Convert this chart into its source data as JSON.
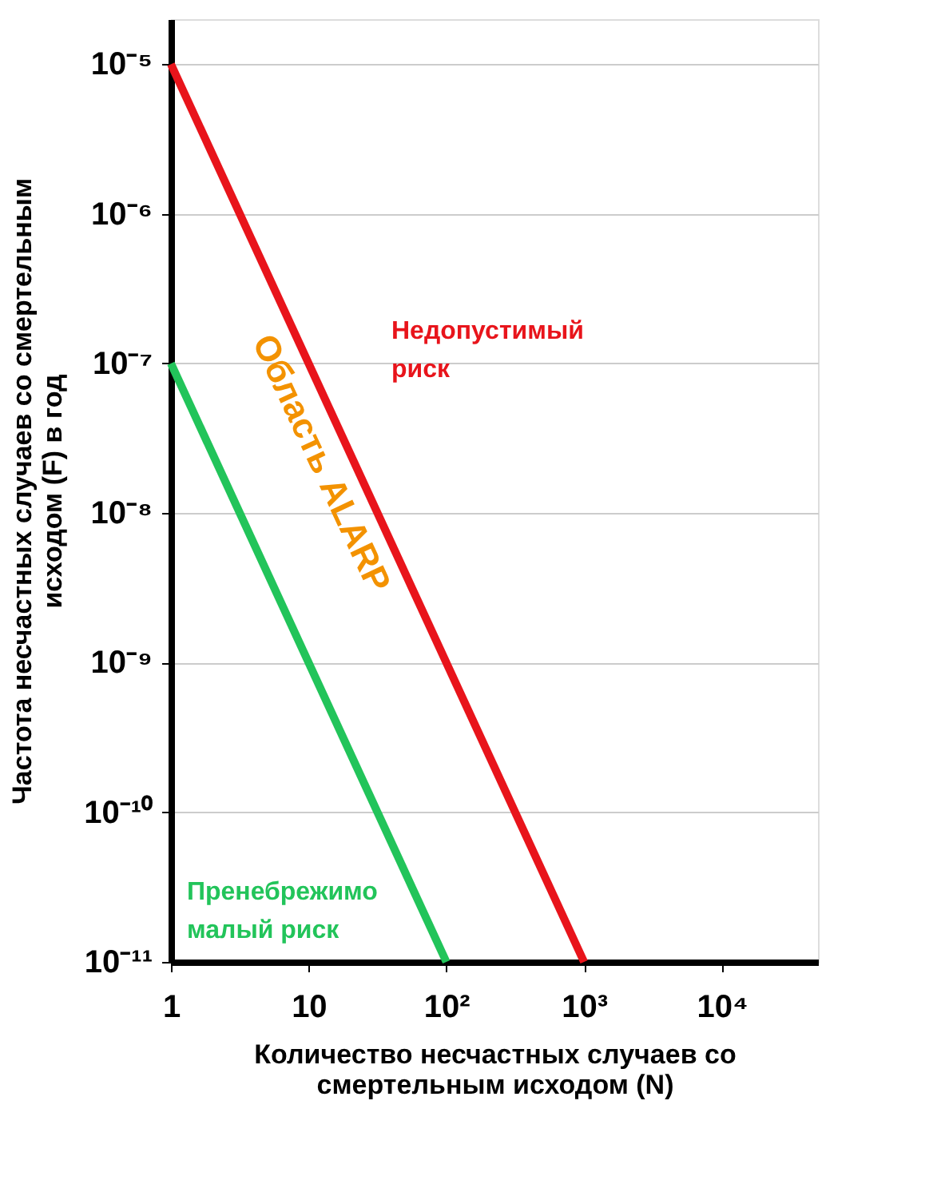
{
  "chart_data": {
    "type": "line",
    "xlabel": "Количество несчастных случаев со смертельным исходом (N)",
    "ylabel": "Частота несчастных случаев со смертельным исходом (F) в год",
    "series": [
      {
        "color": "#e8141b",
        "x": [
          1,
          1000
        ],
        "values": [
          1e-05,
          1e-11
        ]
      },
      {
        "color": "#22c45a",
        "x": [
          1,
          100
        ],
        "values": [
          1e-07,
          1e-11
        ]
      }
    ],
    "log": "xy",
    "xlim": [
      1,
      50000
    ],
    "xticks": [
      1,
      10,
      {
        "value": 100,
        "label": "10²"
      },
      {
        "value": 1000,
        "label": "10³"
      },
      {
        "value": 10000,
        "label": "10⁴"
      }
    ],
    "ylim": [
      1e-11,
      2e-05
    ],
    "yticks": [
      {
        "value": 1e-11,
        "label": "10⁻¹¹"
      },
      {
        "value": 1e-10,
        "label": "10⁻¹⁰"
      },
      {
        "value": 1e-09,
        "label": "10⁻⁹"
      },
      {
        "value": 1e-08,
        "label": "10⁻⁸"
      },
      {
        "value": 1e-07,
        "label": "10⁻⁷"
      },
      {
        "value": 1e-06,
        "label": "10⁻⁶"
      },
      {
        "value": 1e-05,
        "label": "10⁻⁵"
      }
    ],
    "grid": "y",
    "marker": "none",
    "line_style": "solid",
    "annotations": [
      "Недопустимый риск",
      "Область ALARP",
      "Пренебрежимо малый риск"
    ]
  }
}
